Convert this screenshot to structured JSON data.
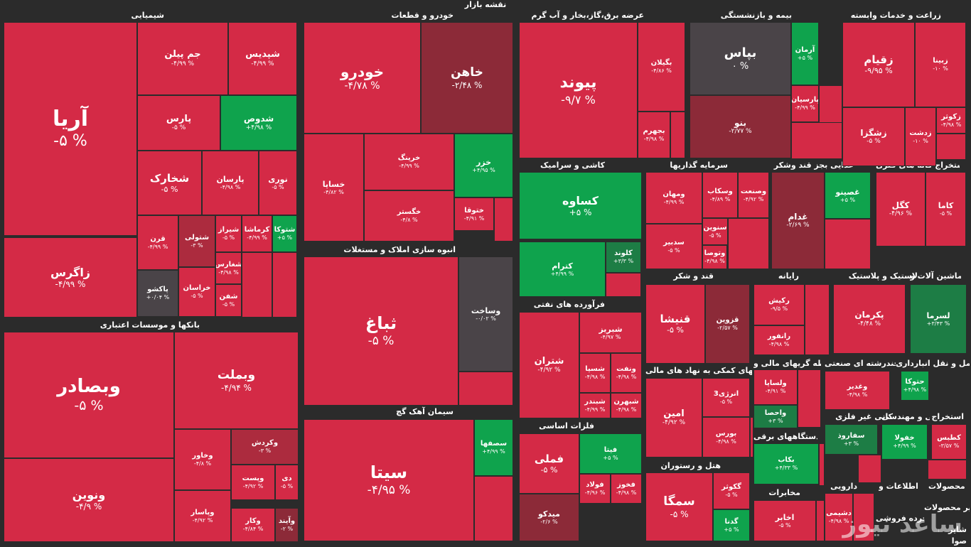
{
  "title": "نقشه بازار",
  "watermark": "ساعد نیوز",
  "colors": {
    "neg5": "#d42a46",
    "neg3": "#ac2b3e",
    "neg1": "#8c2a38",
    "zero": "#4a4448",
    "pos": "#0fa34d",
    "pos_dark": "#1d7d45"
  },
  "sectors": [
    "شیمیایی",
    "خودرو و قطعات",
    "عرضه برق،گاز،بخار و آب گرم",
    "بیمه و بازنشستگی",
    "زراعت و خدمات وابسته",
    "انبوه سازی املاک و مستغلات",
    "کاشی و سرامیک",
    "سرمایه گذاریها",
    "غذایی بجز قند وشکر",
    "استخراج کانه های فلزی",
    "بانکها و موسسات اعتباری",
    "فرآورده های نفتی",
    "قند و شکر",
    "رایانه",
    "لاستیک و پلاستیک",
    "ماشین آلات و",
    "سیمان آهک گچ",
    "فلزات اساسی",
    "فعالیتهای کمکی به نهاد های مالی",
    "واسطه گریهای مالی و",
    "چندرشته ای صنعتی",
    "حمل و نقل انبارداری",
    "دستگاههای برقی",
    "کانی غیر فلزی",
    "فنی و مهندسی",
    "استخراج",
    "هتل و رستوران",
    "مخابرات",
    "دارویی",
    "اطلاعات و",
    "محصولات",
    "سایر محصولات",
    "خرده فروشی",
    "شایر",
    "صوا"
  ],
  "chart_data": {
    "type": "treemap",
    "title": "نقشه بازار",
    "tiles": [
      {
        "name": "آریا",
        "change": "-۵ %",
        "value": -5
      },
      {
        "name": "زاگرس",
        "change": "-۴/۹۹ %",
        "value": -4.99
      },
      {
        "name": "جم پیلن",
        "change": "-۴/۹۹ %",
        "value": -4.99
      },
      {
        "name": "شپدیس",
        "change": "-۴/۹۹ %",
        "value": -4.99
      },
      {
        "name": "پارس",
        "change": "-۵ %",
        "value": -5
      },
      {
        "name": "شدوص",
        "change": "+۴/۹۸ %",
        "value": 4.98
      },
      {
        "name": "شخارک",
        "change": "-۵ %",
        "value": -5
      },
      {
        "name": "پارسان",
        "change": "-۴/۹۸ %",
        "value": -4.98
      },
      {
        "name": "نوری",
        "change": "-۵ %",
        "value": -5
      },
      {
        "name": "قرن",
        "change": "-۴/۹۹ %",
        "value": -4.99
      },
      {
        "name": "شتولی",
        "change": "-۳ %",
        "value": -3
      },
      {
        "name": "شیراز",
        "change": "-۵ %",
        "value": -5
      },
      {
        "name": "کرماشا",
        "change": "-۴/۹۹ %",
        "value": -4.99
      },
      {
        "name": "شتوکا",
        "change": "+۵ %",
        "value": 5
      },
      {
        "name": "پاکشو",
        "change": "+۰/۰۴ %",
        "value": 0.04
      },
      {
        "name": "خراسان",
        "change": "-۵ %",
        "value": -5
      },
      {
        "name": "شغارس",
        "change": "-۴/۹۸ %",
        "value": -4.98
      },
      {
        "name": "شفن",
        "change": "-۵ %",
        "value": -5
      },
      {
        "name": "خودرو",
        "change": "-۴/۷۸ %",
        "value": -4.78
      },
      {
        "name": "خاهن",
        "change": "-۲/۴۸ %",
        "value": -2.48
      },
      {
        "name": "خساپا",
        "change": "-۴/۸۲ %",
        "value": -4.82
      },
      {
        "name": "خرینگ",
        "change": "-۴/۹۹ %",
        "value": -4.99
      },
      {
        "name": "خزر",
        "change": "+۴/۹۵ %",
        "value": 4.95
      },
      {
        "name": "خگستر",
        "change": "-۴/۸ %",
        "value": -4.8
      },
      {
        "name": "ختوقا",
        "change": "-۴/۹۱ %",
        "value": -4.91
      },
      {
        "name": "پیوند",
        "change": "-۹/۷ %",
        "value": -9.7
      },
      {
        "name": "بگیلان",
        "change": "-۴/۸۶ %",
        "value": -4.86
      },
      {
        "name": "بجهرم",
        "change": "-۴/۹۸ %",
        "value": -4.98
      },
      {
        "name": "بپاس",
        "change": "۰ %",
        "value": 0
      },
      {
        "name": "آرمان",
        "change": "+۵ %",
        "value": 5
      },
      {
        "name": "پارسیان",
        "change": "-۴/۹۹ %",
        "value": -4.99
      },
      {
        "name": "بنو",
        "change": "-۲/۷۷ %",
        "value": -2.77
      },
      {
        "name": "زقیام",
        "change": "-۹/۹۵ %",
        "value": -9.95
      },
      {
        "name": "زبینا",
        "change": "-۱۰ %",
        "value": -10
      },
      {
        "name": "زشگزا",
        "change": "-۵ %",
        "value": -5
      },
      {
        "name": "زدشت",
        "change": "-۱۰ %",
        "value": -10
      },
      {
        "name": "زکوثر",
        "change": "-۴/۹۸ %",
        "value": -4.98
      },
      {
        "name": "ثباغ",
        "change": "-۵ %",
        "value": -5
      },
      {
        "name": "وساخت",
        "change": "-۰/۰۲ %",
        "value": -0.02
      },
      {
        "name": "کساوه",
        "change": "+۵ %",
        "value": 5
      },
      {
        "name": "کترام",
        "change": "+۴/۹۹ %",
        "value": 4.99
      },
      {
        "name": "کلوند",
        "change": "+۳/۳ %",
        "value": 3.3
      },
      {
        "name": "ومهان",
        "change": "-۴/۹۹ %",
        "value": -4.99
      },
      {
        "name": "وسکاب",
        "change": "-۴/۸۹ %",
        "value": -4.89
      },
      {
        "name": "وصنعت",
        "change": "-۴/۹۲ %",
        "value": -4.92
      },
      {
        "name": "سدبیر",
        "change": "-۵ %",
        "value": -5
      },
      {
        "name": "وتوصا",
        "change": "-۴/۹۸ %",
        "value": -4.98
      },
      {
        "name": "سنوین",
        "change": "-۵ %",
        "value": -5
      },
      {
        "name": "غدام",
        "change": "-۲/۶۹ %",
        "value": -2.69
      },
      {
        "name": "غصینو",
        "change": "+۵ %",
        "value": 5
      },
      {
        "name": "کگل",
        "change": "-۴/۹۶ %",
        "value": -4.96
      },
      {
        "name": "کاما",
        "change": "-۵ %",
        "value": -5
      },
      {
        "name": "وبصادر",
        "change": "-۵ %",
        "value": -5
      },
      {
        "name": "ونوین",
        "change": "-۴/۹ %",
        "value": -4.9
      },
      {
        "name": "وبملت",
        "change": "-۴/۹۴ %",
        "value": -4.94
      },
      {
        "name": "وخاور",
        "change": "-۴/۸ %",
        "value": -4.8
      },
      {
        "name": "وکردش",
        "change": "-۳ %",
        "value": -3
      },
      {
        "name": "وپست",
        "change": "-۴/۹۲ %",
        "value": -4.92
      },
      {
        "name": "دی",
        "change": "-۵ %",
        "value": -5
      },
      {
        "name": "وپاسار",
        "change": "-۴/۹۲ %",
        "value": -4.92
      },
      {
        "name": "وکار",
        "change": "-۴/۸۴ %",
        "value": -4.84
      },
      {
        "name": "وآیند",
        "change": "-۲ %",
        "value": -2
      },
      {
        "name": "شتران",
        "change": "-۴/۹۲ %",
        "value": -4.92
      },
      {
        "name": "شبریز",
        "change": "-۴/۹۷ %",
        "value": -4.97
      },
      {
        "name": "شسپا",
        "change": "-۴/۹۸ %",
        "value": -4.98
      },
      {
        "name": "ونفت",
        "change": "-۴/۹۸ %",
        "value": -4.98
      },
      {
        "name": "شبندر",
        "change": "-۴/۹۹ %",
        "value": -4.99
      },
      {
        "name": "شبهرن",
        "change": "-۴/۹۸ %",
        "value": -4.98
      },
      {
        "name": "قنیشا",
        "change": "-۵ %",
        "value": -5
      },
      {
        "name": "قزوین",
        "change": "-۲/۵۷ %",
        "value": -2.57
      },
      {
        "name": "رکیش",
        "change": "-۹/۵ %",
        "value": -9.5
      },
      {
        "name": "رانفور",
        "change": "-۴/۹۸ %",
        "value": -4.98
      },
      {
        "name": "پکرمان",
        "change": "-۴/۴۸ %",
        "value": -4.48
      },
      {
        "name": "لسرما",
        "change": "+۳/۴۳ %",
        "value": 3.43
      },
      {
        "name": "سیتا",
        "change": "-۴/۹۵ %",
        "value": -4.95
      },
      {
        "name": "سصفها",
        "change": "+۴/۹۹ %",
        "value": 4.99
      },
      {
        "name": "فملی",
        "change": "-۵ %",
        "value": -5
      },
      {
        "name": "فیتا",
        "change": "+۵ %",
        "value": 5
      },
      {
        "name": "فولاد",
        "change": "-۴/۹۶ %",
        "value": -4.96
      },
      {
        "name": "فخوز",
        "change": "-۴/۹۸ %",
        "value": -4.98
      },
      {
        "name": "میدکو",
        "change": "-۲/۶ %",
        "value": -2.6
      },
      {
        "name": "امین",
        "change": "-۴/۹۲ %",
        "value": -4.92
      },
      {
        "name": "انرژی3",
        "change": "-۵ %",
        "value": -5
      },
      {
        "name": "بورس",
        "change": "-۴/۹۸ %",
        "value": -4.98
      },
      {
        "name": "ولساپا",
        "change": "-۴/۹۱ %",
        "value": -4.91
      },
      {
        "name": "واحصا",
        "change": "+۳ %",
        "value": 3
      },
      {
        "name": "وغدیر",
        "change": "-۴/۹۸ %",
        "value": -4.98
      },
      {
        "name": "حتوکا",
        "change": "+۴/۹۸ %",
        "value": 4.98
      },
      {
        "name": "بکاب",
        "change": "+۴/۳۳ %",
        "value": 4.33
      },
      {
        "name": "سفاروذ",
        "change": "+۳ %",
        "value": 3
      },
      {
        "name": "خفولا",
        "change": "+۴/۹۹ %",
        "value": 4.99
      },
      {
        "name": "کطبس",
        "change": "-۳/۵۷ %",
        "value": -3.57
      },
      {
        "name": "سمگا",
        "change": "-۵ %",
        "value": -5
      },
      {
        "name": "گکوثر",
        "change": "-۵ %",
        "value": -5
      },
      {
        "name": "گدنا",
        "change": "+۵ %",
        "value": 5
      },
      {
        "name": "اخابر",
        "change": "-۵ %",
        "value": -5
      },
      {
        "name": "دشیمی",
        "change": "-۴/۹۸ %",
        "value": -4.98
      }
    ]
  }
}
